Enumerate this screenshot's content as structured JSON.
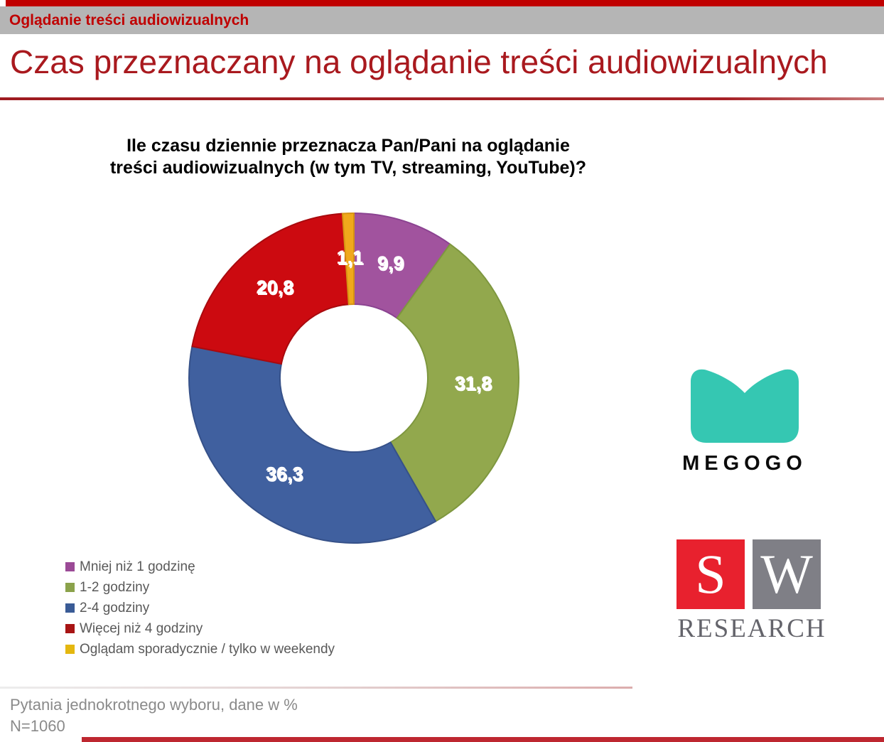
{
  "header": {
    "tag": "Oglądanie treści audiowizualnych",
    "title": "Czas przeznaczany na oglądanie treści audiowizualnych"
  },
  "chart": {
    "question_lines": {
      "0": "Ile czasu dziennie przeznacza Pan/Pani na oglądanie",
      "1": "treści audiowizualnych (w tym TV, streaming, YouTube)?"
    }
  },
  "chart_data": {
    "type": "pie",
    "subtype": "donut",
    "title": "Ile czasu dziennie przeznacza Pan/Pani na oglądanie treści audiowizualnych (w tym TV, streaming, YouTube)?",
    "unit": "%",
    "start_angle_deg": 0,
    "direction": "clockwise",
    "donut_hole_ratio": 0.45,
    "legend_position": "bottom-left",
    "segments": [
      {
        "label": "Mniej niż 1 godzinę",
        "value": 9.9,
        "display": "9,9",
        "color": "#A1539E",
        "border": "#8B4391",
        "legend_color": "#9B4A96"
      },
      {
        "label": "1-2 godziny",
        "value": 31.8,
        "display": "31,8",
        "color": "#92A84D",
        "border": "#7E973F",
        "legend_color": "#8BA24B"
      },
      {
        "label": "2-4 godziny",
        "value": 36.3,
        "display": "36,3",
        "color": "#40609F",
        "border": "#365189",
        "legend_color": "#3A5B96"
      },
      {
        "label": "Więcej niż 4 godziny",
        "value": 20.8,
        "display": "20,8",
        "color": "#CC0A10",
        "border": "#A90A0E",
        "legend_color": "#A81414"
      },
      {
        "label": "Oglądam sporadycznie / tylko w weekendy",
        "value": 1.1,
        "display": "1,1",
        "color": "#F0A81C",
        "border": "#D69312",
        "legend_color": "#E4B70F"
      }
    ]
  },
  "logos": {
    "megogo": {
      "wordmark": "MEGOGO",
      "mark_color": "#35C7B2"
    },
    "sw_research": {
      "letter_s": "S",
      "letter_w": "W",
      "wordmark": "RESEARCH",
      "s_bg": "#E8212E",
      "w_bg": "#7F7F86"
    }
  },
  "footer": {
    "note": "Pytania jednokrotnego wyboru, dane w %",
    "sample": "N=1060"
  },
  "accents": {
    "top_strip": "#C00000",
    "bottom_strip": "#BE2730",
    "title_color": "#A9191E",
    "tag_bar_bg": "#B5B5B5"
  }
}
